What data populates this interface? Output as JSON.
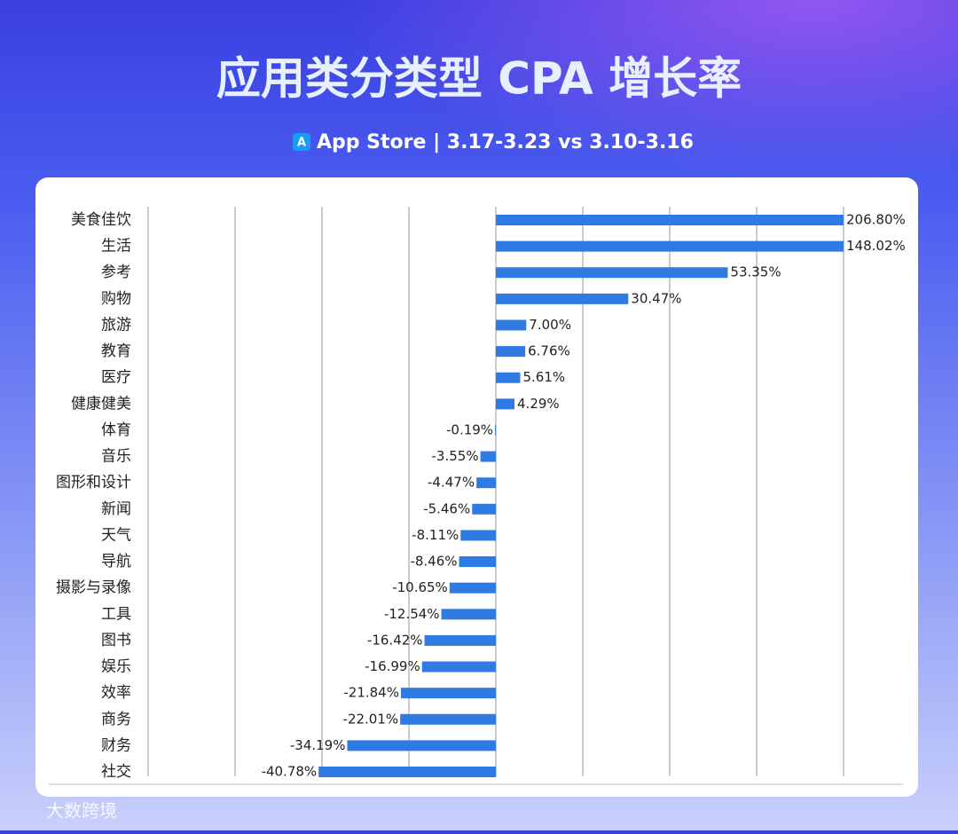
{
  "chart_data": {
    "type": "bar",
    "orientation": "horizontal",
    "title": "应用类分类型 CPA 增长率",
    "subtitle": "App Store | 3.17-3.23 vs 3.10-3.16",
    "watermark": "大数跨境",
    "categories": [
      "美食佳饮",
      "生活",
      "参考",
      "购物",
      "旅游",
      "教育",
      "医疗",
      "健康健美",
      "体育",
      "音乐",
      "图形和设计",
      "新闻",
      "天气",
      "导航",
      "摄影与录像",
      "工具",
      "图书",
      "娱乐",
      "效率",
      "商务",
      "财务",
      "社交"
    ],
    "values": [
      206.8,
      148.02,
      53.35,
      30.47,
      7.0,
      6.76,
      5.61,
      4.29,
      -0.19,
      -3.55,
      -4.47,
      -5.46,
      -8.11,
      -8.46,
      -10.65,
      -12.54,
      -16.42,
      -16.99,
      -21.84,
      -22.01,
      -34.19,
      -40.78
    ],
    "value_labels": [
      "206.80%",
      "148.02%",
      "53.35%",
      "30.47%",
      "7.00%",
      "6.76%",
      "5.61%",
      "4.29%",
      "-0.19%",
      "-3.55%",
      "-4.47%",
      "-5.46%",
      "-8.11%",
      "-8.46%",
      "-10.65%",
      "-12.54%",
      "-16.42%",
      "-16.99%",
      "-21.84%",
      "-22.01%",
      "-34.19%",
      "-40.78%"
    ],
    "color": "#2f7be3",
    "xlim": [
      -80,
      80
    ],
    "xticks": [
      -80,
      -60,
      -40,
      -20,
      0,
      20,
      40,
      60,
      80
    ],
    "grid": true
  }
}
